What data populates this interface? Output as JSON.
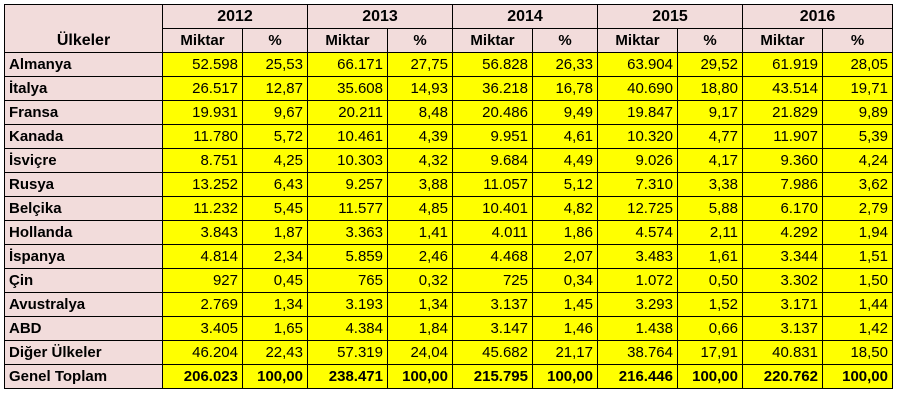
{
  "header": {
    "country_label": "Ülkeler",
    "years": [
      "2012",
      "2013",
      "2014",
      "2015",
      "2016"
    ],
    "amount_label": "Miktar",
    "percent_label": "%"
  },
  "rows": [
    {
      "country": "Almanya",
      "values": [
        "52.598",
        "25,53",
        "66.171",
        "27,75",
        "56.828",
        "26,33",
        "63.904",
        "29,52",
        "61.919",
        "28,05"
      ]
    },
    {
      "country": "İtalya",
      "values": [
        "26.517",
        "12,87",
        "35.608",
        "14,93",
        "36.218",
        "16,78",
        "40.690",
        "18,80",
        "43.514",
        "19,71"
      ]
    },
    {
      "country": "Fransa",
      "values": [
        "19.931",
        "9,67",
        "20.211",
        "8,48",
        "20.486",
        "9,49",
        "19.847",
        "9,17",
        "21.829",
        "9,89"
      ]
    },
    {
      "country": "Kanada",
      "values": [
        "11.780",
        "5,72",
        "10.461",
        "4,39",
        "9.951",
        "4,61",
        "10.320",
        "4,77",
        "11.907",
        "5,39"
      ]
    },
    {
      "country": "İsviçre",
      "values": [
        "8.751",
        "4,25",
        "10.303",
        "4,32",
        "9.684",
        "4,49",
        "9.026",
        "4,17",
        "9.360",
        "4,24"
      ]
    },
    {
      "country": "Rusya",
      "values": [
        "13.252",
        "6,43",
        "9.257",
        "3,88",
        "11.057",
        "5,12",
        "7.310",
        "3,38",
        "7.986",
        "3,62"
      ]
    },
    {
      "country": "Belçika",
      "values": [
        "11.232",
        "5,45",
        "11.577",
        "4,85",
        "10.401",
        "4,82",
        "12.725",
        "5,88",
        "6.170",
        "2,79"
      ]
    },
    {
      "country": "Hollanda",
      "values": [
        "3.843",
        "1,87",
        "3.363",
        "1,41",
        "4.011",
        "1,86",
        "4.574",
        "2,11",
        "4.292",
        "1,94"
      ]
    },
    {
      "country": "İspanya",
      "values": [
        "4.814",
        "2,34",
        "5.859",
        "2,46",
        "4.468",
        "2,07",
        "3.483",
        "1,61",
        "3.344",
        "1,51"
      ]
    },
    {
      "country": "Çin",
      "values": [
        "927",
        "0,45",
        "765",
        "0,32",
        "725",
        "0,34",
        "1.072",
        "0,50",
        "3.302",
        "1,50"
      ]
    },
    {
      "country": "Avustralya",
      "values": [
        "2.769",
        "1,34",
        "3.193",
        "1,34",
        "3.137",
        "1,45",
        "3.293",
        "1,52",
        "3.171",
        "1,44"
      ]
    },
    {
      "country": "ABD",
      "values": [
        "3.405",
        "1,65",
        "4.384",
        "1,84",
        "3.147",
        "1,46",
        "1.438",
        "0,66",
        "3.137",
        "1,42"
      ]
    },
    {
      "country": "Diğer Ülkeler",
      "values": [
        "46.204",
        "22,43",
        "57.319",
        "24,04",
        "45.682",
        "21,17",
        "38.764",
        "17,91",
        "40.831",
        "18,50"
      ]
    }
  ],
  "total": {
    "label": "Genel Toplam",
    "values": [
      "206.023",
      "100,00",
      "238.471",
      "100,00",
      "215.795",
      "100,00",
      "216.446",
      "100,00",
      "220.762",
      "100,00"
    ]
  },
  "colors": {
    "header_bg": "#f2dcdb",
    "cell_bg": "#ffff00",
    "border": "#000000"
  }
}
